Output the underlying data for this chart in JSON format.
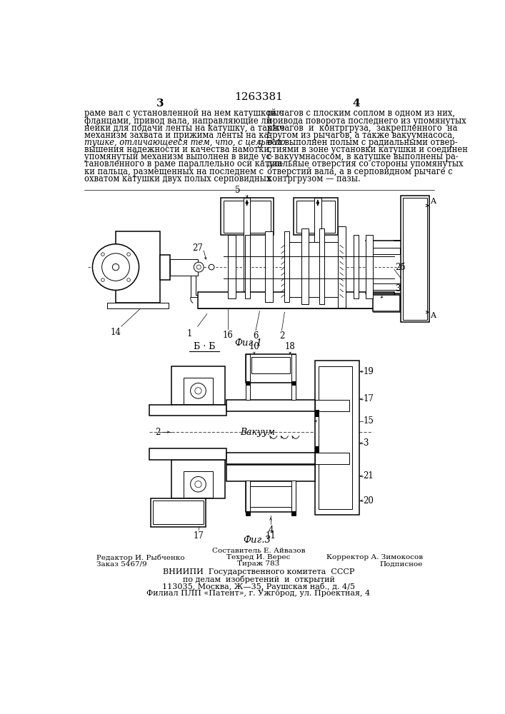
{
  "patent_number": "1263381",
  "page_left": "3",
  "page_right": "4",
  "text_left": [
    "раме вал с установленной на нем катушкой с",
    "фланцами, привод вала, направляющие ли-",
    "нейки для подачи ленты на катушку, а также",
    "механизм захвата и прижима ленты на ка-",
    "тушке, отличающееся тем, что, с целью по-",
    "вышения надежности и качества намотки,",
    "упомянутый механизм выполнен в виде ус-",
    "тановленного в раме параллельно оси катуш-",
    "ки пальца, размещенных на последнем с",
    "охватом катушки двух полых серповидных"
  ],
  "text_right": [
    "рычагов с плоским соплом в одном из них,",
    "привода поворота последнего из упомянутых",
    "рычагов  и  контргруза,  закрепленного  на",
    "другом из рычагов, а также вакуумнасоса,",
    "вал выполнен полым с радиальными отвер-",
    "стиями в зоне установки катушки и соединен",
    "с вакуумнасосом, в катушке выполнены ра-",
    "диальные отверстия со стороны упомянутых",
    "отверстий вала, а в серповидном рычаге с",
    "контргрузом — пазы."
  ],
  "fig1_caption": "Фиг.1",
  "fig3_caption": "Фиг.3",
  "bg_color": "#ffffff",
  "text_color": "#000000",
  "line_color": "#000000"
}
